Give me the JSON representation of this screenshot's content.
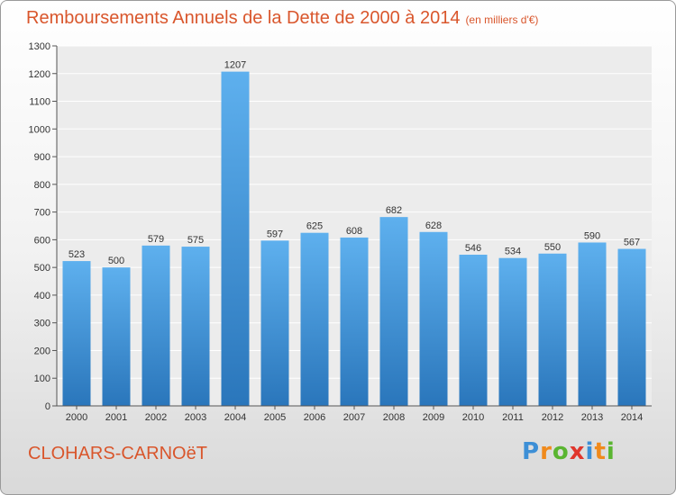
{
  "title": "Remboursements Annuels de la Dette de 2000 à 2014",
  "subtitle": "(en milliers d'€)",
  "commune": "CLOHARS-CARNOëT",
  "logo": {
    "text": "Proxiti",
    "letters": [
      {
        "ch": "P",
        "color": "#3d8fd6"
      },
      {
        "ch": "r",
        "color": "#f08a1c"
      },
      {
        "ch": "o",
        "color": "#5ab531"
      },
      {
        "ch": "x",
        "color": "#e0362c"
      },
      {
        "ch": "i",
        "color": "#3d8fd6"
      },
      {
        "ch": "t",
        "color": "#f08a1c"
      },
      {
        "ch": "i",
        "color": "#5ab531"
      }
    ]
  },
  "chart_data": {
    "type": "bar",
    "categories": [
      "2000",
      "2001",
      "2002",
      "2003",
      "2004",
      "2005",
      "2006",
      "2007",
      "2008",
      "2009",
      "2010",
      "2011",
      "2012",
      "2013",
      "2014"
    ],
    "values": [
      523,
      500,
      579,
      575,
      1207,
      597,
      625,
      608,
      682,
      628,
      546,
      534,
      550,
      590,
      567
    ],
    "ylim": [
      0,
      1300
    ],
    "yticks": [
      0,
      100,
      200,
      300,
      400,
      500,
      600,
      700,
      800,
      900,
      1000,
      1100,
      1200,
      1300
    ],
    "grid": true,
    "bar_color_top": "#5eb0ee",
    "bar_color_bottom": "#2a76bb"
  }
}
